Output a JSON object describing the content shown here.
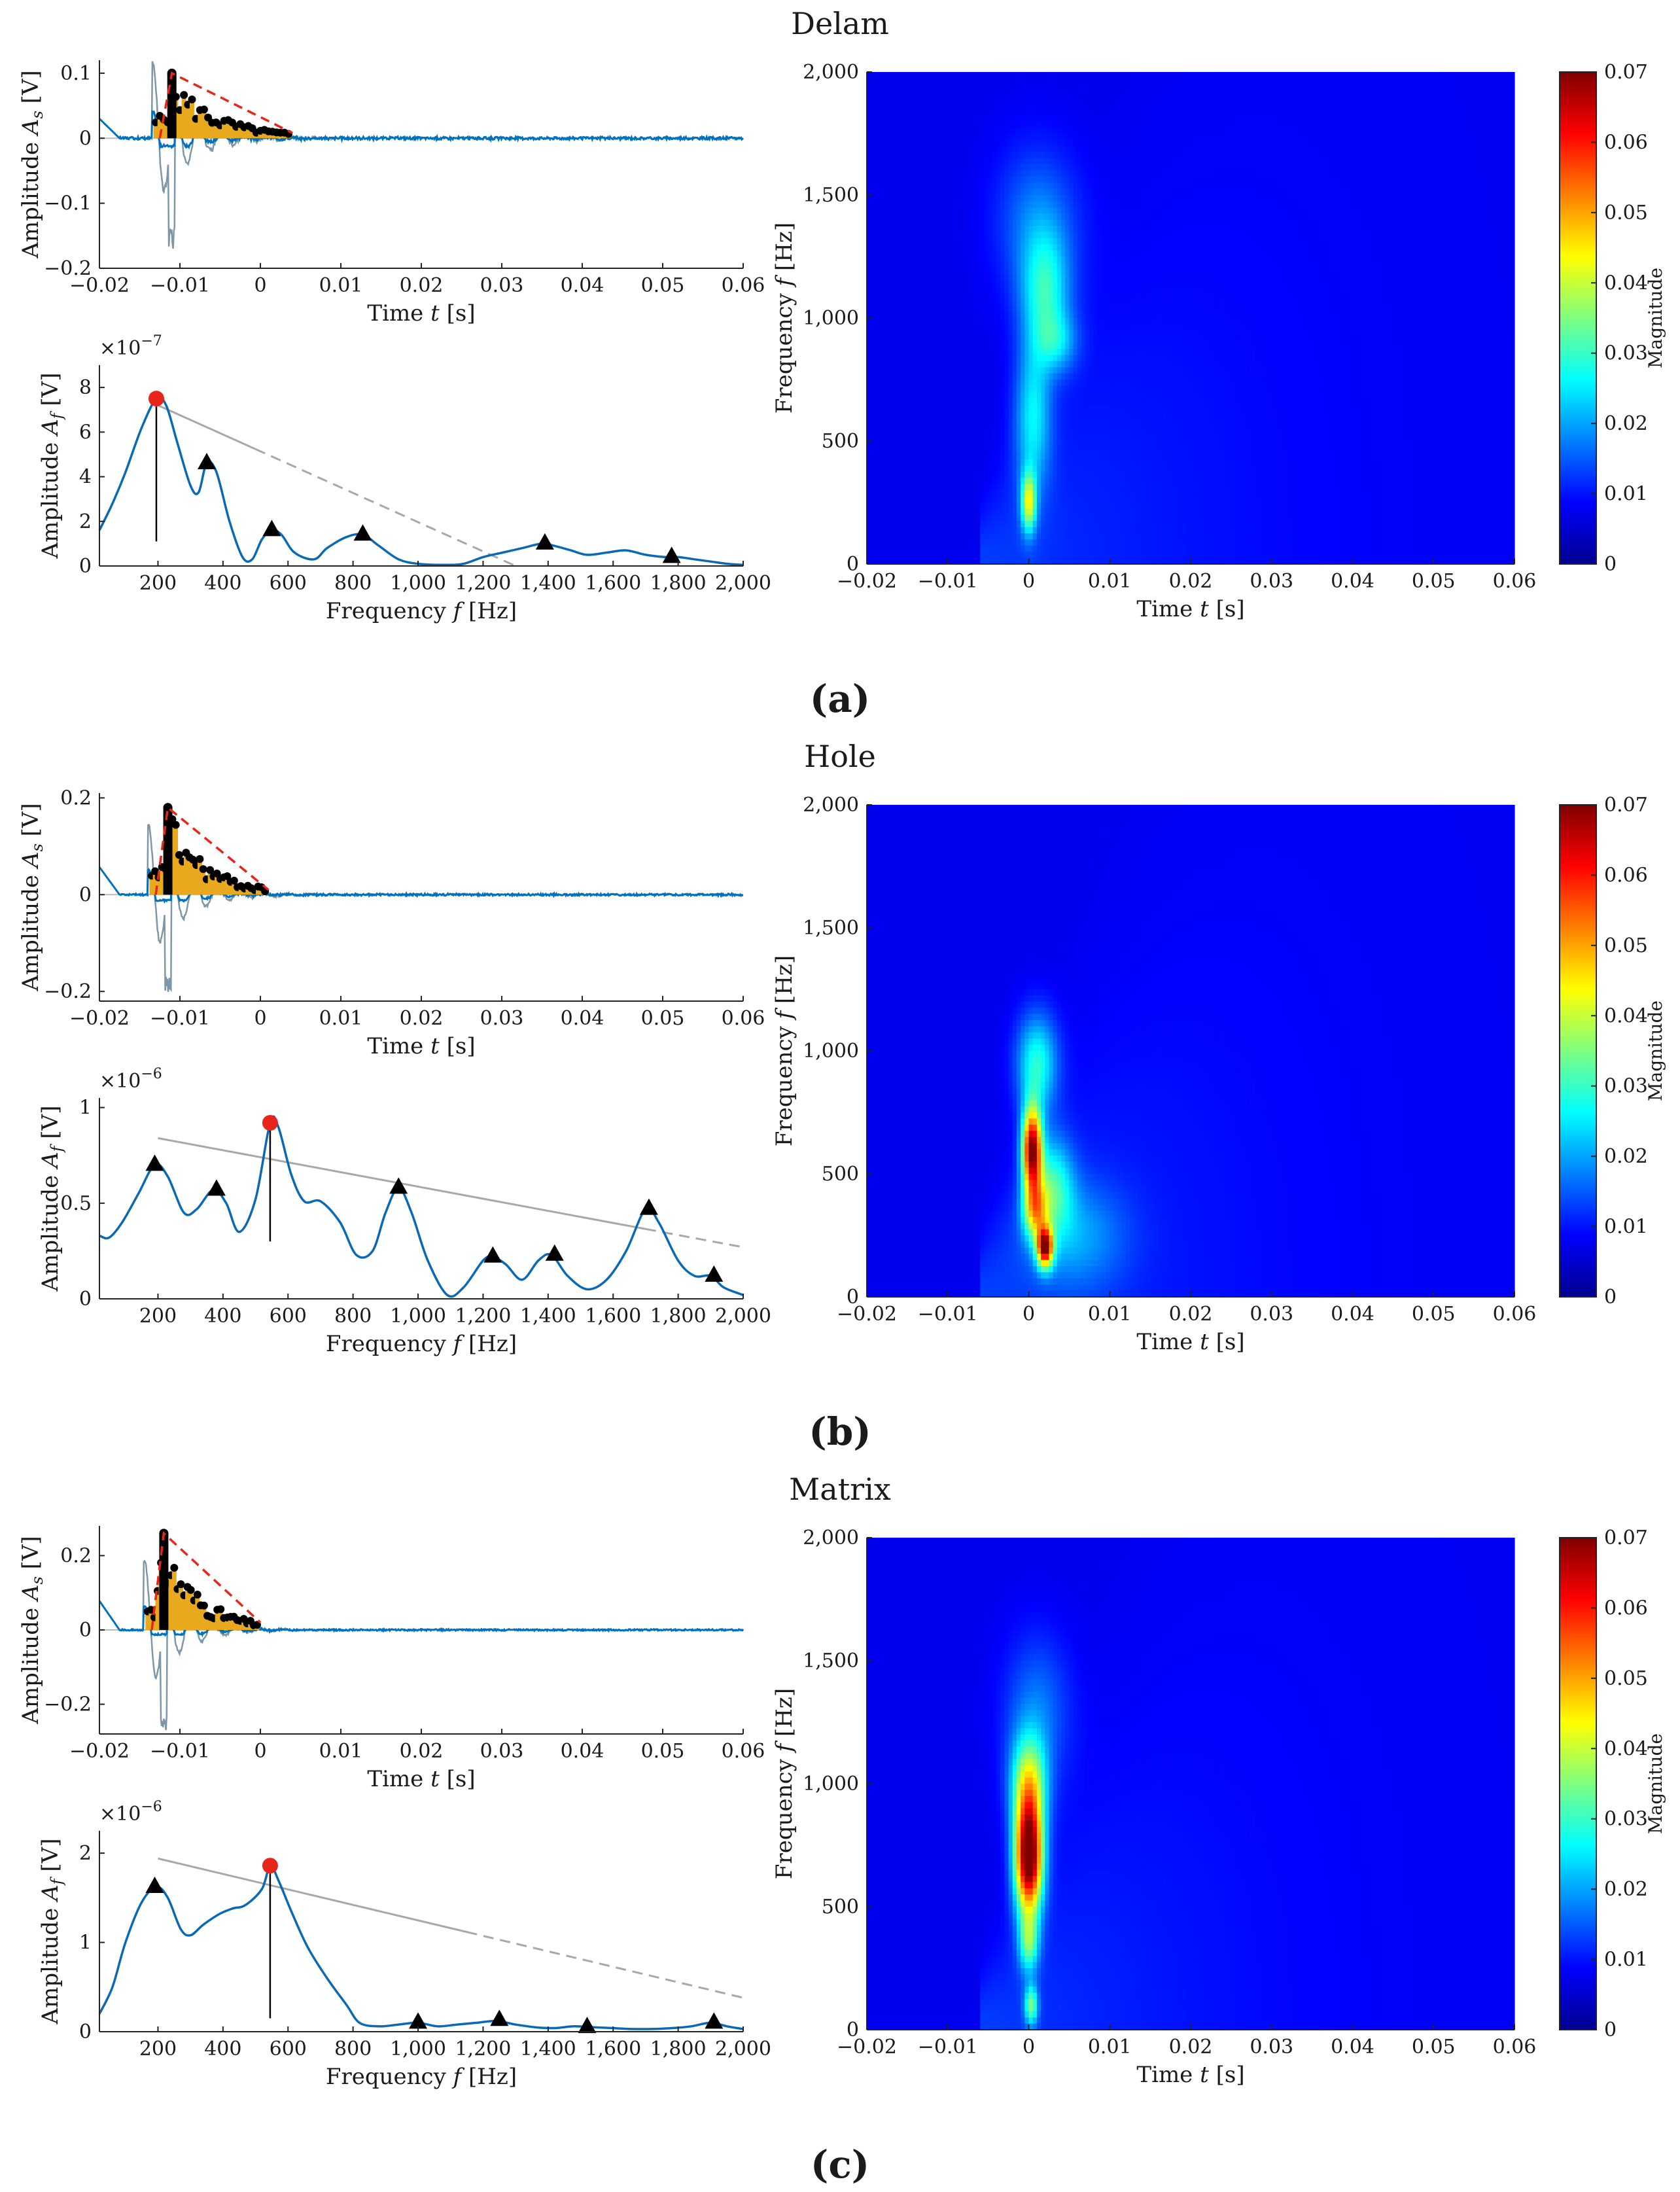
{
  "colors": {
    "signal": "#0072bd",
    "envelope_gray": "#7f96a6",
    "fill": "#e8a91e",
    "dash": "#e8251b",
    "spectrum": "#0a69b4",
    "trend": "#a8a8a8",
    "peak": "#e8251b",
    "marker": "#000000"
  },
  "panels": [
    {
      "id": "a",
      "title": "Delam",
      "sublabel": "(a)",
      "time_plot": {
        "xlabel": "Time t [s]",
        "ylabel": "Amplitude A_s [V]",
        "xlim": [
          -0.02,
          0.06
        ],
        "xticks": [
          "-0.02",
          "-0.01",
          "0",
          "0.01",
          "0.02",
          "0.03",
          "0.04",
          "0.05",
          "0.06"
        ],
        "ylim": [
          -0.2,
          0.12
        ],
        "yticks": [
          {
            "v": 0.1,
            "label": "0.1"
          },
          {
            "v": 0,
            "label": "0"
          },
          {
            "v": -0.1,
            "label": "-0.1"
          },
          {
            "v": -0.2,
            "label": "-0.2"
          }
        ],
        "peak_t": -0.011,
        "peak_a": 0.1,
        "min_a": -0.17,
        "decay_end_t": 0.004,
        "decay_end_a": 0.008
      },
      "freq_plot": {
        "xlabel": "Frequency f [Hz]",
        "ylabel": "Amplitude A_f [V]",
        "exponent": "×10^-7",
        "xlim": [
          20,
          2000
        ],
        "xticks": [
          "200",
          "400",
          "600",
          "800",
          "1,000",
          "1,200",
          "1,400",
          "1,600",
          "1,800",
          "2,000"
        ],
        "ylim": [
          0,
          9
        ],
        "yticks": [
          {
            "v": 0,
            "label": "0"
          },
          {
            "v": 2,
            "label": "2"
          },
          {
            "v": 4,
            "label": "4"
          },
          {
            "v": 6,
            "label": "6"
          },
          {
            "v": 8,
            "label": "8"
          }
        ],
        "curve": [
          [
            20,
            1.6
          ],
          [
            60,
            2.8
          ],
          [
            100,
            4.2
          ],
          [
            150,
            6.2
          ],
          [
            195,
            7.5
          ],
          [
            225,
            7.2
          ],
          [
            260,
            5.5
          ],
          [
            300,
            3.6
          ],
          [
            325,
            3.3
          ],
          [
            350,
            4.6
          ],
          [
            380,
            4.2
          ],
          [
            420,
            2.0
          ],
          [
            460,
            0.4
          ],
          [
            490,
            0.3
          ],
          [
            520,
            1.2
          ],
          [
            550,
            1.6
          ],
          [
            580,
            1.4
          ],
          [
            620,
            0.6
          ],
          [
            680,
            0.3
          ],
          [
            720,
            0.8
          ],
          [
            780,
            1.3
          ],
          [
            830,
            1.4
          ],
          [
            880,
            0.9
          ],
          [
            940,
            0.3
          ],
          [
            1000,
            0.1
          ],
          [
            1080,
            0.05
          ],
          [
            1140,
            0.1
          ],
          [
            1200,
            0.4
          ],
          [
            1260,
            0.6
          ],
          [
            1320,
            0.8
          ],
          [
            1380,
            1.0
          ],
          [
            1420,
            0.9
          ],
          [
            1470,
            0.7
          ],
          [
            1520,
            0.5
          ],
          [
            1580,
            0.6
          ],
          [
            1640,
            0.7
          ],
          [
            1700,
            0.5
          ],
          [
            1760,
            0.4
          ],
          [
            1800,
            0.4
          ],
          [
            1850,
            0.3
          ],
          [
            1900,
            0.2
          ],
          [
            1950,
            0.1
          ],
          [
            2000,
            0.05
          ]
        ],
        "peak": [
          195,
          7.5
        ],
        "peak_line_to": 1.1,
        "triangles": [
          [
            350,
            4.6
          ],
          [
            550,
            1.6
          ],
          [
            830,
            1.4
          ],
          [
            1390,
            1.0
          ],
          [
            1780,
            0.4
          ]
        ],
        "trend": {
          "x0": 200,
          "y0": 7.2,
          "x1": 1300,
          "y1": 0,
          "solid_until": 500
        }
      },
      "spectrogram": {
        "xlabel": "Time t [s]",
        "ylabel": "Frequency f [Hz]",
        "xlim": [
          -0.02,
          0.06
        ],
        "xticks": [
          "-0.02",
          "-0.01",
          "0",
          "0.01",
          "0.02",
          "0.03",
          "0.04",
          "0.05",
          "0.06"
        ],
        "ylim": [
          0,
          2000
        ],
        "yticks": [
          {
            "v": 0,
            "label": "0"
          },
          {
            "v": 500,
            "label": "500"
          },
          {
            "v": 1000,
            "label": "1,000"
          },
          {
            "v": 1500,
            "label": "1,500"
          },
          {
            "v": 2000,
            "label": "2,000"
          }
        ],
        "colorbar_label": "Magnitude",
        "colorbar_ticks": [
          "0",
          "0.01",
          "0.02",
          "0.03",
          "0.04",
          "0.05",
          "0.06",
          "0.07"
        ],
        "blobs": [
          {
            "t": 0.0,
            "f": 250,
            "rt": 0.0009,
            "rf": 120,
            "mag": 0.032
          },
          {
            "t": 0.0005,
            "f": 600,
            "rt": 0.0022,
            "rf": 300,
            "mag": 0.018
          },
          {
            "t": 0.002,
            "f": 1100,
            "rt": 0.003,
            "rf": 250,
            "mag": 0.02
          },
          {
            "t": 0.0035,
            "f": 900,
            "rt": 0.0025,
            "rf": 120,
            "mag": 0.012
          },
          {
            "t": 0.001,
            "f": 1400,
            "rt": 0.005,
            "rf": 300,
            "mag": 0.01
          }
        ]
      }
    },
    {
      "id": "b",
      "title": "Hole",
      "sublabel": "(b)",
      "time_plot": {
        "xlabel": "Time t [s]",
        "ylabel": "Amplitude A_s [V]",
        "xlim": [
          -0.02,
          0.06
        ],
        "xticks": [
          "-0.02",
          "-0.01",
          "0",
          "0.01",
          "0.02",
          "0.03",
          "0.04",
          "0.05",
          "0.06"
        ],
        "ylim": [
          -0.22,
          0.21
        ],
        "yticks": [
          {
            "v": 0.2,
            "label": "0.2"
          },
          {
            "v": 0,
            "label": "0"
          },
          {
            "v": -0.2,
            "label": "-0.2"
          }
        ],
        "peak_t": -0.0115,
        "peak_a": 0.18,
        "min_a": -0.21,
        "decay_end_t": 0.001,
        "decay_end_a": 0.01
      },
      "freq_plot": {
        "xlabel": "Frequency f [Hz]",
        "ylabel": "Amplitude A_f [V]",
        "exponent": "×10^-6",
        "xlim": [
          20,
          2000
        ],
        "xticks": [
          "200",
          "400",
          "600",
          "800",
          "1,000",
          "1,200",
          "1,400",
          "1,600",
          "1,800",
          "2,000"
        ],
        "ylim": [
          0,
          1.05
        ],
        "yticks": [
          {
            "v": 0,
            "label": "0"
          },
          {
            "v": 0.5,
            "label": "0.5"
          },
          {
            "v": 1,
            "label": "1"
          }
        ],
        "curve": [
          [
            20,
            0.33
          ],
          [
            50,
            0.32
          ],
          [
            90,
            0.4
          ],
          [
            140,
            0.55
          ],
          [
            190,
            0.7
          ],
          [
            230,
            0.64
          ],
          [
            280,
            0.45
          ],
          [
            320,
            0.47
          ],
          [
            370,
            0.57
          ],
          [
            410,
            0.5
          ],
          [
            450,
            0.35
          ],
          [
            500,
            0.52
          ],
          [
            545,
            0.92
          ],
          [
            570,
            0.9
          ],
          [
            610,
            0.65
          ],
          [
            650,
            0.51
          ],
          [
            700,
            0.51
          ],
          [
            760,
            0.4
          ],
          [
            810,
            0.23
          ],
          [
            860,
            0.25
          ],
          [
            900,
            0.45
          ],
          [
            940,
            0.58
          ],
          [
            980,
            0.45
          ],
          [
            1030,
            0.2
          ],
          [
            1090,
            0.02
          ],
          [
            1140,
            0.06
          ],
          [
            1200,
            0.2
          ],
          [
            1230,
            0.22
          ],
          [
            1270,
            0.18
          ],
          [
            1320,
            0.1
          ],
          [
            1370,
            0.2
          ],
          [
            1410,
            0.23
          ],
          [
            1460,
            0.12
          ],
          [
            1520,
            0.05
          ],
          [
            1580,
            0.1
          ],
          [
            1640,
            0.25
          ],
          [
            1700,
            0.47
          ],
          [
            1740,
            0.4
          ],
          [
            1800,
            0.2
          ],
          [
            1850,
            0.12
          ],
          [
            1900,
            0.12
          ],
          [
            1940,
            0.06
          ],
          [
            2000,
            0.02
          ]
        ],
        "peak": [
          545,
          0.92
        ],
        "peak_line_to": 0.3,
        "triangles": [
          [
            190,
            0.7
          ],
          [
            380,
            0.57
          ],
          [
            940,
            0.58
          ],
          [
            1230,
            0.22
          ],
          [
            1420,
            0.23
          ],
          [
            1710,
            0.47
          ],
          [
            1910,
            0.12
          ]
        ],
        "trend": {
          "x0": 200,
          "y0": 0.84,
          "x1": 2000,
          "y1": 0.27,
          "solid_until": 1700
        }
      },
      "spectrogram": {
        "xlabel": "Time t [s]",
        "ylabel": "Frequency f [Hz]",
        "xlim": [
          -0.02,
          0.06
        ],
        "xticks": [
          "-0.02",
          "-0.01",
          "0",
          "0.01",
          "0.02",
          "0.03",
          "0.04",
          "0.05",
          "0.06"
        ],
        "ylim": [
          0,
          2000
        ],
        "yticks": [
          {
            "v": 0,
            "label": "0"
          },
          {
            "v": 500,
            "label": "500"
          },
          {
            "v": 1000,
            "label": "1,000"
          },
          {
            "v": 1500,
            "label": "1,500"
          },
          {
            "v": 2000,
            "label": "2,000"
          }
        ],
        "colorbar_label": "Magnitude",
        "colorbar_ticks": [
          "0",
          "0.01",
          "0.02",
          "0.03",
          "0.04",
          "0.05",
          "0.06",
          "0.07"
        ],
        "blobs": [
          {
            "t": 0.0004,
            "f": 600,
            "rt": 0.0012,
            "rf": 170,
            "mag": 0.062
          },
          {
            "t": 0.002,
            "f": 200,
            "rt": 0.001,
            "rf": 80,
            "mag": 0.055
          },
          {
            "t": 0.0008,
            "f": 350,
            "rt": 0.0015,
            "rf": 120,
            "mag": 0.03
          },
          {
            "t": 0.003,
            "f": 450,
            "rt": 0.0025,
            "rf": 200,
            "mag": 0.02
          },
          {
            "t": 0.001,
            "f": 950,
            "rt": 0.0025,
            "rf": 200,
            "mag": 0.022
          },
          {
            "t": 0.006,
            "f": 250,
            "rt": 0.006,
            "rf": 220,
            "mag": 0.01
          }
        ]
      }
    },
    {
      "id": "c",
      "title": "Matrix",
      "sublabel": "(c)",
      "time_plot": {
        "xlabel": "Time t [s]",
        "ylabel": "Amplitude A_s [V]",
        "xlim": [
          -0.02,
          0.06
        ],
        "xticks": [
          "-0.02",
          "-0.01",
          "0",
          "0.01",
          "0.02",
          "0.03",
          "0.04",
          "0.05",
          "0.06"
        ],
        "ylim": [
          -0.28,
          0.28
        ],
        "yticks": [
          {
            "v": 0.2,
            "label": "0.2"
          },
          {
            "v": 0,
            "label": "0"
          },
          {
            "v": -0.2,
            "label": "-0.2"
          }
        ],
        "peak_t": -0.012,
        "peak_a": 0.26,
        "min_a": -0.27,
        "decay_end_t": 0.0,
        "decay_end_a": 0.02
      },
      "freq_plot": {
        "xlabel": "Frequency f [Hz]",
        "ylabel": "Amplitude A_f [V]",
        "exponent": "×10^-6",
        "xlim": [
          20,
          2000
        ],
        "xticks": [
          "200",
          "400",
          "600",
          "800",
          "1,000",
          "1,200",
          "1,400",
          "1,600",
          "1,800",
          "2,000"
        ],
        "ylim": [
          0,
          2.25
        ],
        "yticks": [
          {
            "v": 0,
            "label": "0"
          },
          {
            "v": 1,
            "label": "1"
          },
          {
            "v": 2,
            "label": "2"
          }
        ],
        "curve": [
          [
            20,
            0.2
          ],
          [
            60,
            0.5
          ],
          [
            100,
            1.0
          ],
          [
            150,
            1.45
          ],
          [
            195,
            1.62
          ],
          [
            230,
            1.5
          ],
          [
            270,
            1.15
          ],
          [
            300,
            1.08
          ],
          [
            340,
            1.2
          ],
          [
            390,
            1.32
          ],
          [
            430,
            1.38
          ],
          [
            470,
            1.42
          ],
          [
            520,
            1.6
          ],
          [
            545,
            1.86
          ],
          [
            570,
            1.7
          ],
          [
            610,
            1.35
          ],
          [
            660,
            0.95
          ],
          [
            720,
            0.6
          ],
          [
            780,
            0.3
          ],
          [
            820,
            0.1
          ],
          [
            880,
            0.06
          ],
          [
            940,
            0.08
          ],
          [
            1000,
            0.1
          ],
          [
            1060,
            0.06
          ],
          [
            1120,
            0.08
          ],
          [
            1180,
            0.1
          ],
          [
            1240,
            0.12
          ],
          [
            1300,
            0.08
          ],
          [
            1360,
            0.05
          ],
          [
            1420,
            0.04
          ],
          [
            1480,
            0.06
          ],
          [
            1540,
            0.05
          ],
          [
            1600,
            0.04
          ],
          [
            1660,
            0.03
          ],
          [
            1720,
            0.03
          ],
          [
            1780,
            0.04
          ],
          [
            1840,
            0.06
          ],
          [
            1900,
            0.1
          ],
          [
            1950,
            0.06
          ],
          [
            2000,
            0.03
          ]
        ],
        "peak": [
          545,
          1.86
        ],
        "peak_line_to": 0.15,
        "triangles": [
          [
            190,
            1.62
          ],
          [
            1000,
            0.1
          ],
          [
            1250,
            0.13
          ],
          [
            1520,
            0.05
          ],
          [
            1910,
            0.1
          ]
        ],
        "trend": {
          "x0": 200,
          "y0": 1.94,
          "x1": 2000,
          "y1": 0.38,
          "solid_until": 1150
        }
      },
      "spectrogram": {
        "xlabel": "Time t [s]",
        "ylabel": "Frequency f [Hz]",
        "xlim": [
          -0.02,
          0.06
        ],
        "xticks": [
          "-0.02",
          "-0.01",
          "0",
          "0.01",
          "0.02",
          "0.03",
          "0.04",
          "0.05",
          "0.06"
        ],
        "ylim": [
          0,
          2000
        ],
        "yticks": [
          {
            "v": 0,
            "label": "0"
          },
          {
            "v": 500,
            "label": "500"
          },
          {
            "v": 1000,
            "label": "1,000"
          },
          {
            "v": 1500,
            "label": "1,500"
          },
          {
            "v": 2000,
            "label": "2,000"
          }
        ],
        "colorbar_label": "Magnitude",
        "colorbar_ticks": [
          "0",
          "0.01",
          "0.02",
          "0.03",
          "0.04",
          "0.05",
          "0.06",
          "0.07"
        ],
        "blobs": [
          {
            "t": 0.0,
            "f": 700,
            "rt": 0.0017,
            "rf": 230,
            "mag": 0.072
          },
          {
            "t": 0.0,
            "f": 1000,
            "rt": 0.0022,
            "rf": 200,
            "mag": 0.03
          },
          {
            "t": 0.0,
            "f": 350,
            "rt": 0.0012,
            "rf": 120,
            "mag": 0.022
          },
          {
            "t": 0.0003,
            "f": 100,
            "rt": 0.0008,
            "rf": 80,
            "mag": 0.025
          },
          {
            "t": 0.001,
            "f": 1300,
            "rt": 0.004,
            "rf": 300,
            "mag": 0.01
          }
        ]
      }
    }
  ]
}
